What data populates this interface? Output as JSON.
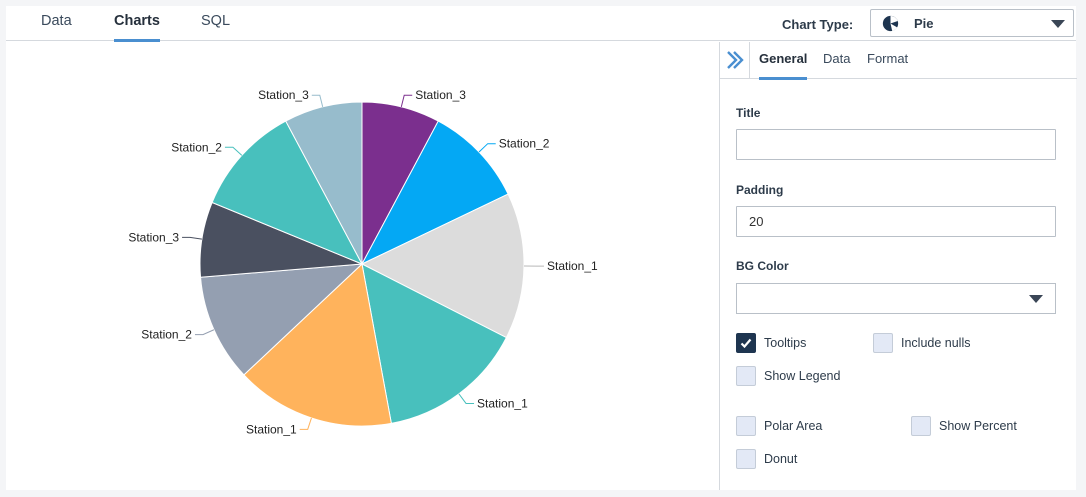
{
  "tabs": [
    {
      "label": "Data",
      "active": false
    },
    {
      "label": "Charts",
      "active": true
    },
    {
      "label": "SQL",
      "active": false
    }
  ],
  "chart_type": {
    "label": "Chart Type:",
    "value": "Pie",
    "icon": "pie-chart-icon"
  },
  "chart_data": {
    "type": "pie",
    "slices": [
      {
        "label": "Station_3",
        "value": 7.8,
        "color": "#7b2f8e"
      },
      {
        "label": "Station_2",
        "value": 10.1,
        "color": "#04a8f4"
      },
      {
        "label": "Station_1",
        "value": 14.6,
        "color": "#dcdcdc"
      },
      {
        "label": "Station_1",
        "value": 14.6,
        "color": "#48c0bd"
      },
      {
        "label": "Station_1",
        "value": 15.9,
        "color": "#ffb35c"
      },
      {
        "label": "Station_2",
        "value": 10.7,
        "color": "#949fb1"
      },
      {
        "label": "Station_3",
        "value": 7.5,
        "color": "#4a5060"
      },
      {
        "label": "Station_2",
        "value": 11.0,
        "color": "#48c0bd"
      },
      {
        "label": "Station_3",
        "value": 7.8,
        "color": "#97bccc"
      }
    ]
  },
  "panel": {
    "tabs": [
      {
        "label": "General",
        "active": true
      },
      {
        "label": "Data",
        "active": false
      },
      {
        "label": "Format",
        "active": false
      }
    ],
    "title_label": "Title",
    "title_value": "",
    "padding_label": "Padding",
    "padding_value": "20",
    "bg_color_label": "BG Color",
    "bg_color_value": "",
    "checkboxes": {
      "tooltips": {
        "label": "Tooltips",
        "checked": true
      },
      "include_nulls": {
        "label": "Include nulls",
        "checked": false
      },
      "show_legend": {
        "label": "Show Legend",
        "checked": false
      },
      "polar_area": {
        "label": "Polar Area",
        "checked": false
      },
      "show_percent": {
        "label": "Show Percent",
        "checked": false
      },
      "donut": {
        "label": "Donut",
        "checked": false
      }
    }
  }
}
